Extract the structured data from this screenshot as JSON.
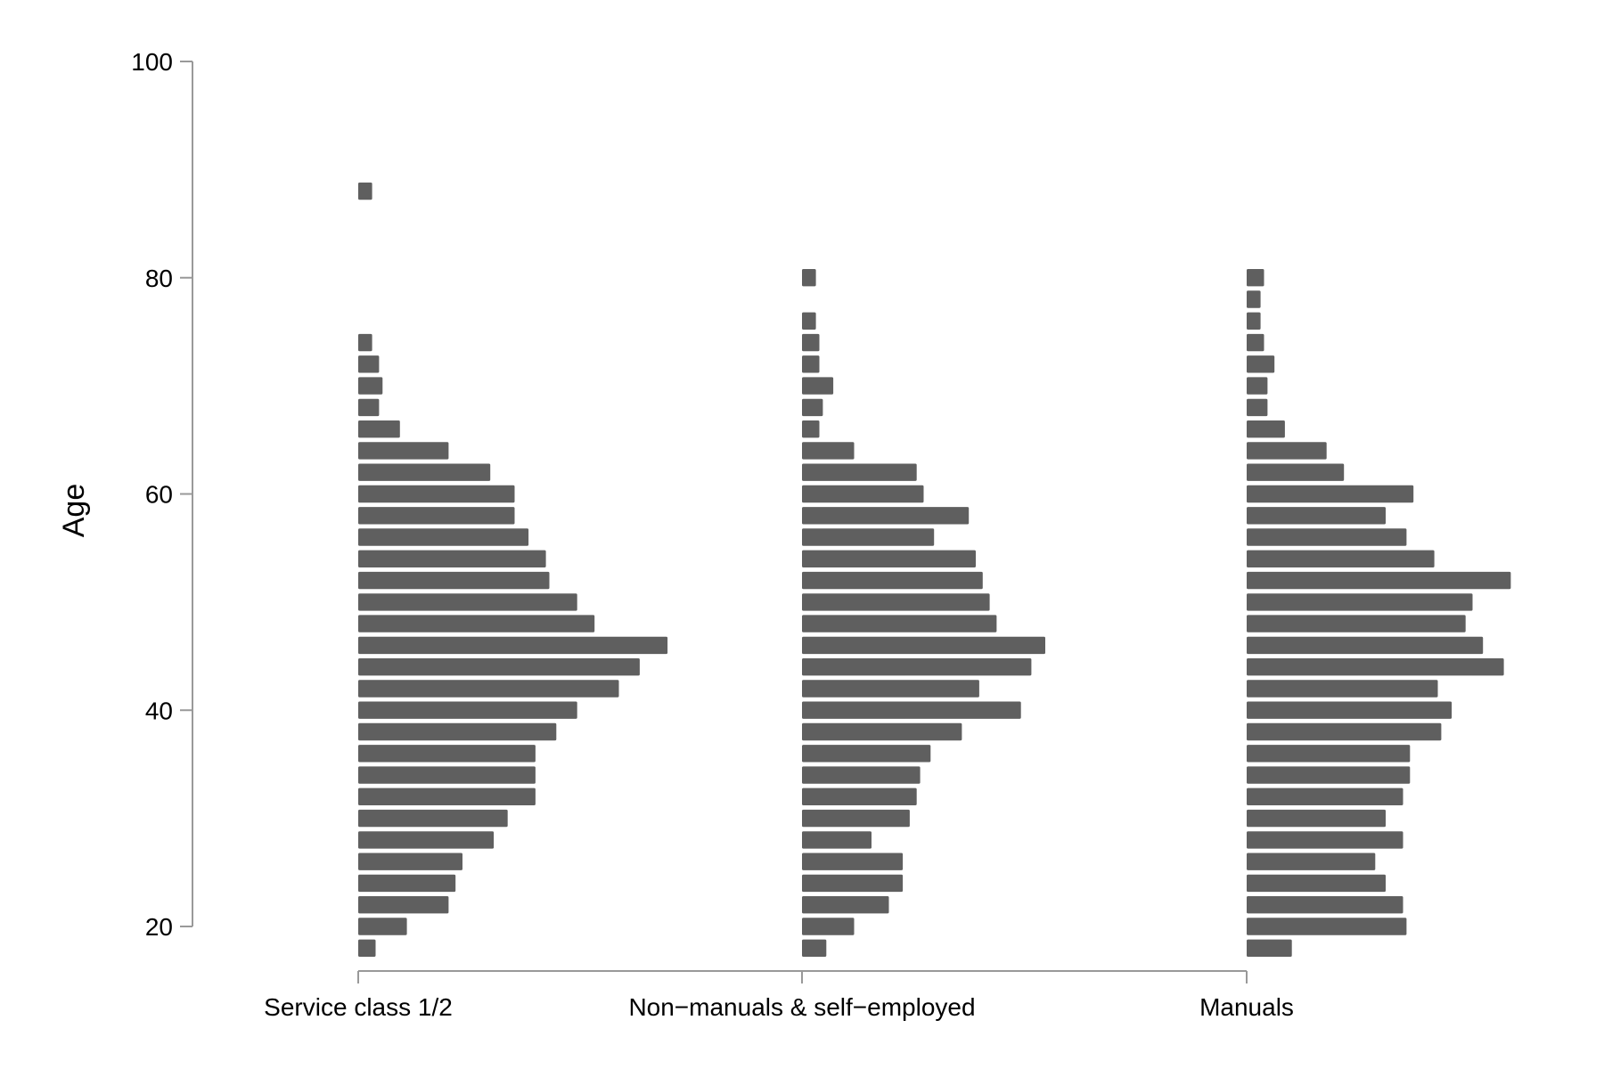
{
  "chart_data": {
    "type": "bar",
    "orientation": "horizontal",
    "ylabel": "Age",
    "xlabel": "",
    "ylim": [
      20,
      100
    ],
    "yticks": [
      20,
      40,
      60,
      80,
      100
    ],
    "bin_width": 2,
    "grid": false,
    "bar_color": "#5f5f5f",
    "axis_color": "#999999",
    "groups": [
      {
        "name": "Service class 1/2",
        "bins": [
          {
            "age": 18,
            "value": 5
          },
          {
            "age": 20,
            "value": 14
          },
          {
            "age": 22,
            "value": 26
          },
          {
            "age": 24,
            "value": 28
          },
          {
            "age": 26,
            "value": 30
          },
          {
            "age": 28,
            "value": 39
          },
          {
            "age": 30,
            "value": 43
          },
          {
            "age": 32,
            "value": 51
          },
          {
            "age": 34,
            "value": 51
          },
          {
            "age": 36,
            "value": 51
          },
          {
            "age": 38,
            "value": 57
          },
          {
            "age": 40,
            "value": 63
          },
          {
            "age": 42,
            "value": 75
          },
          {
            "age": 44,
            "value": 81
          },
          {
            "age": 46,
            "value": 89
          },
          {
            "age": 48,
            "value": 68
          },
          {
            "age": 50,
            "value": 63
          },
          {
            "age": 52,
            "value": 55
          },
          {
            "age": 54,
            "value": 54
          },
          {
            "age": 56,
            "value": 49
          },
          {
            "age": 58,
            "value": 45
          },
          {
            "age": 60,
            "value": 45
          },
          {
            "age": 62,
            "value": 38
          },
          {
            "age": 64,
            "value": 26
          },
          {
            "age": 66,
            "value": 12
          },
          {
            "age": 68,
            "value": 6
          },
          {
            "age": 70,
            "value": 7
          },
          {
            "age": 72,
            "value": 6
          },
          {
            "age": 74,
            "value": 4
          },
          {
            "age": 88,
            "value": 4
          }
        ]
      },
      {
        "name": "Non−manuals & self−employed",
        "bins": [
          {
            "age": 18,
            "value": 7
          },
          {
            "age": 20,
            "value": 15
          },
          {
            "age": 22,
            "value": 25
          },
          {
            "age": 24,
            "value": 29
          },
          {
            "age": 26,
            "value": 29
          },
          {
            "age": 28,
            "value": 20
          },
          {
            "age": 30,
            "value": 31
          },
          {
            "age": 32,
            "value": 33
          },
          {
            "age": 34,
            "value": 34
          },
          {
            "age": 36,
            "value": 37
          },
          {
            "age": 38,
            "value": 46
          },
          {
            "age": 40,
            "value": 63
          },
          {
            "age": 42,
            "value": 51
          },
          {
            "age": 44,
            "value": 66
          },
          {
            "age": 46,
            "value": 70
          },
          {
            "age": 48,
            "value": 56
          },
          {
            "age": 50,
            "value": 54
          },
          {
            "age": 52,
            "value": 52
          },
          {
            "age": 54,
            "value": 50
          },
          {
            "age": 56,
            "value": 38
          },
          {
            "age": 58,
            "value": 48
          },
          {
            "age": 60,
            "value": 35
          },
          {
            "age": 62,
            "value": 33
          },
          {
            "age": 64,
            "value": 15
          },
          {
            "age": 66,
            "value": 5
          },
          {
            "age": 68,
            "value": 6
          },
          {
            "age": 70,
            "value": 9
          },
          {
            "age": 72,
            "value": 5
          },
          {
            "age": 74,
            "value": 5
          },
          {
            "age": 76,
            "value": 4
          },
          {
            "age": 80,
            "value": 4
          }
        ]
      },
      {
        "name": "Manuals",
        "bins": [
          {
            "age": 18,
            "value": 13
          },
          {
            "age": 20,
            "value": 46
          },
          {
            "age": 22,
            "value": 45
          },
          {
            "age": 24,
            "value": 40
          },
          {
            "age": 26,
            "value": 37
          },
          {
            "age": 28,
            "value": 45
          },
          {
            "age": 30,
            "value": 40
          },
          {
            "age": 32,
            "value": 45
          },
          {
            "age": 34,
            "value": 47
          },
          {
            "age": 36,
            "value": 47
          },
          {
            "age": 38,
            "value": 56
          },
          {
            "age": 40,
            "value": 59
          },
          {
            "age": 42,
            "value": 55
          },
          {
            "age": 44,
            "value": 74
          },
          {
            "age": 46,
            "value": 68
          },
          {
            "age": 48,
            "value": 63
          },
          {
            "age": 50,
            "value": 65
          },
          {
            "age": 52,
            "value": 76
          },
          {
            "age": 54,
            "value": 54
          },
          {
            "age": 56,
            "value": 46
          },
          {
            "age": 58,
            "value": 40
          },
          {
            "age": 60,
            "value": 48
          },
          {
            "age": 62,
            "value": 28
          },
          {
            "age": 64,
            "value": 23
          },
          {
            "age": 66,
            "value": 11
          },
          {
            "age": 68,
            "value": 6
          },
          {
            "age": 70,
            "value": 6
          },
          {
            "age": 72,
            "value": 8
          },
          {
            "age": 74,
            "value": 5
          },
          {
            "age": 76,
            "value": 4
          },
          {
            "age": 78,
            "value": 4
          },
          {
            "age": 80,
            "value": 5
          }
        ]
      }
    ]
  }
}
